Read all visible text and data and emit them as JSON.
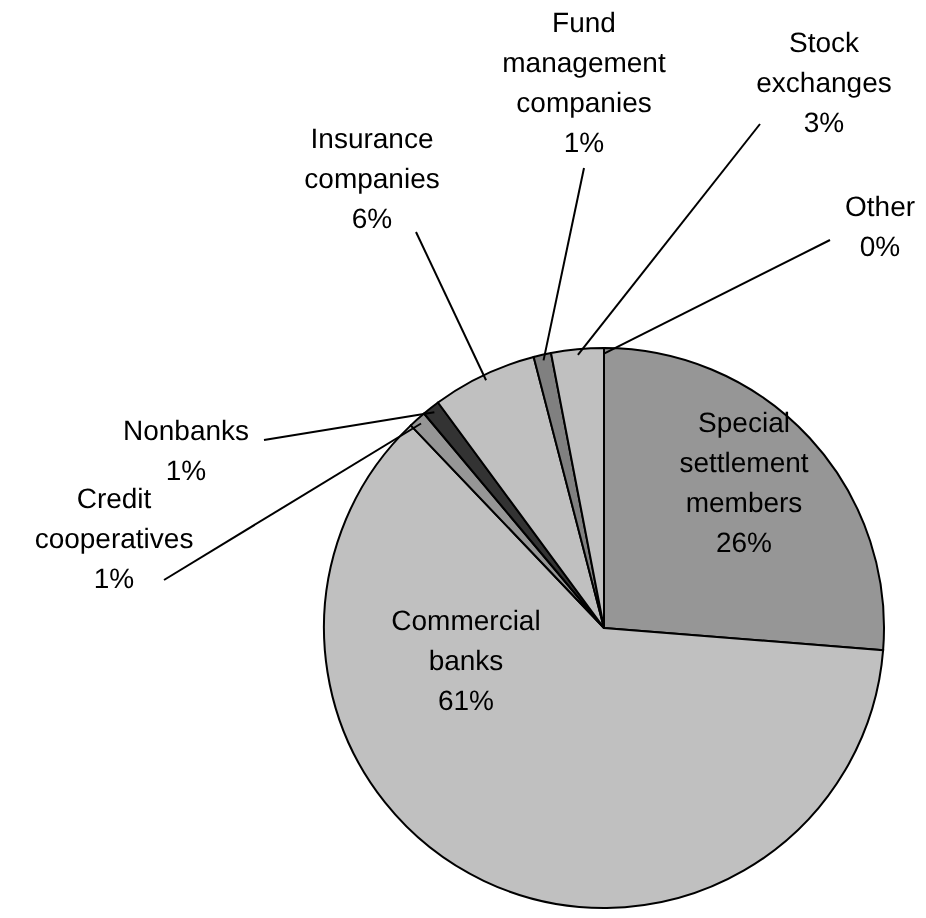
{
  "chart_data": {
    "type": "pie",
    "categories": [
      "Other",
      "Special settlement members",
      "Commercial banks",
      "Credit cooperatives",
      "Nonbanks",
      "Insurance companies",
      "Fund management companies",
      "Stock exchanges"
    ],
    "values": [
      0,
      26,
      61,
      1,
      1,
      6,
      1,
      3
    ],
    "value_labels": [
      "0%",
      "26%",
      "61%",
      "1%",
      "1%",
      "6%",
      "1%",
      "3%"
    ],
    "colors": [
      "#c0c0c0",
      "#969696",
      "#c0c0c0",
      "#969696",
      "#333333",
      "#c0c0c0",
      "#808080",
      "#c0c0c0"
    ]
  }
}
